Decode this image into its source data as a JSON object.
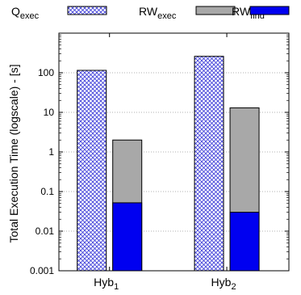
{
  "chart_data": {
    "type": "bar",
    "ylabel": "Total Execution Time (logscale) - [s]",
    "yscale": "log",
    "ylim": [
      0.001,
      1000
    ],
    "yticks": [
      "0.001",
      "0.01",
      "0.1",
      "1",
      "10",
      "100"
    ],
    "grid": true,
    "legend_position": "top",
    "categories": [
      {
        "base": "Hyb",
        "sub": "1"
      },
      {
        "base": "Hyb",
        "sub": "2"
      }
    ],
    "series": [
      {
        "key": "q_exec",
        "name_base": "Q",
        "name_sub": "exec",
        "style": "crosshatch",
        "color": "#3a3ad8",
        "stack": "left",
        "values": [
          115,
          260
        ]
      },
      {
        "key": "rw_exec",
        "name_base": "RW",
        "name_sub": "exec",
        "style": "solid",
        "color": "#a8a8a8",
        "stack": "right",
        "values": [
          2.0,
          13
        ]
      },
      {
        "key": "rw_find",
        "name_base": "RW",
        "name_sub": "find",
        "style": "solid",
        "color": "#0000f0",
        "stack": "right",
        "values": [
          0.052,
          0.03
        ]
      }
    ]
  }
}
